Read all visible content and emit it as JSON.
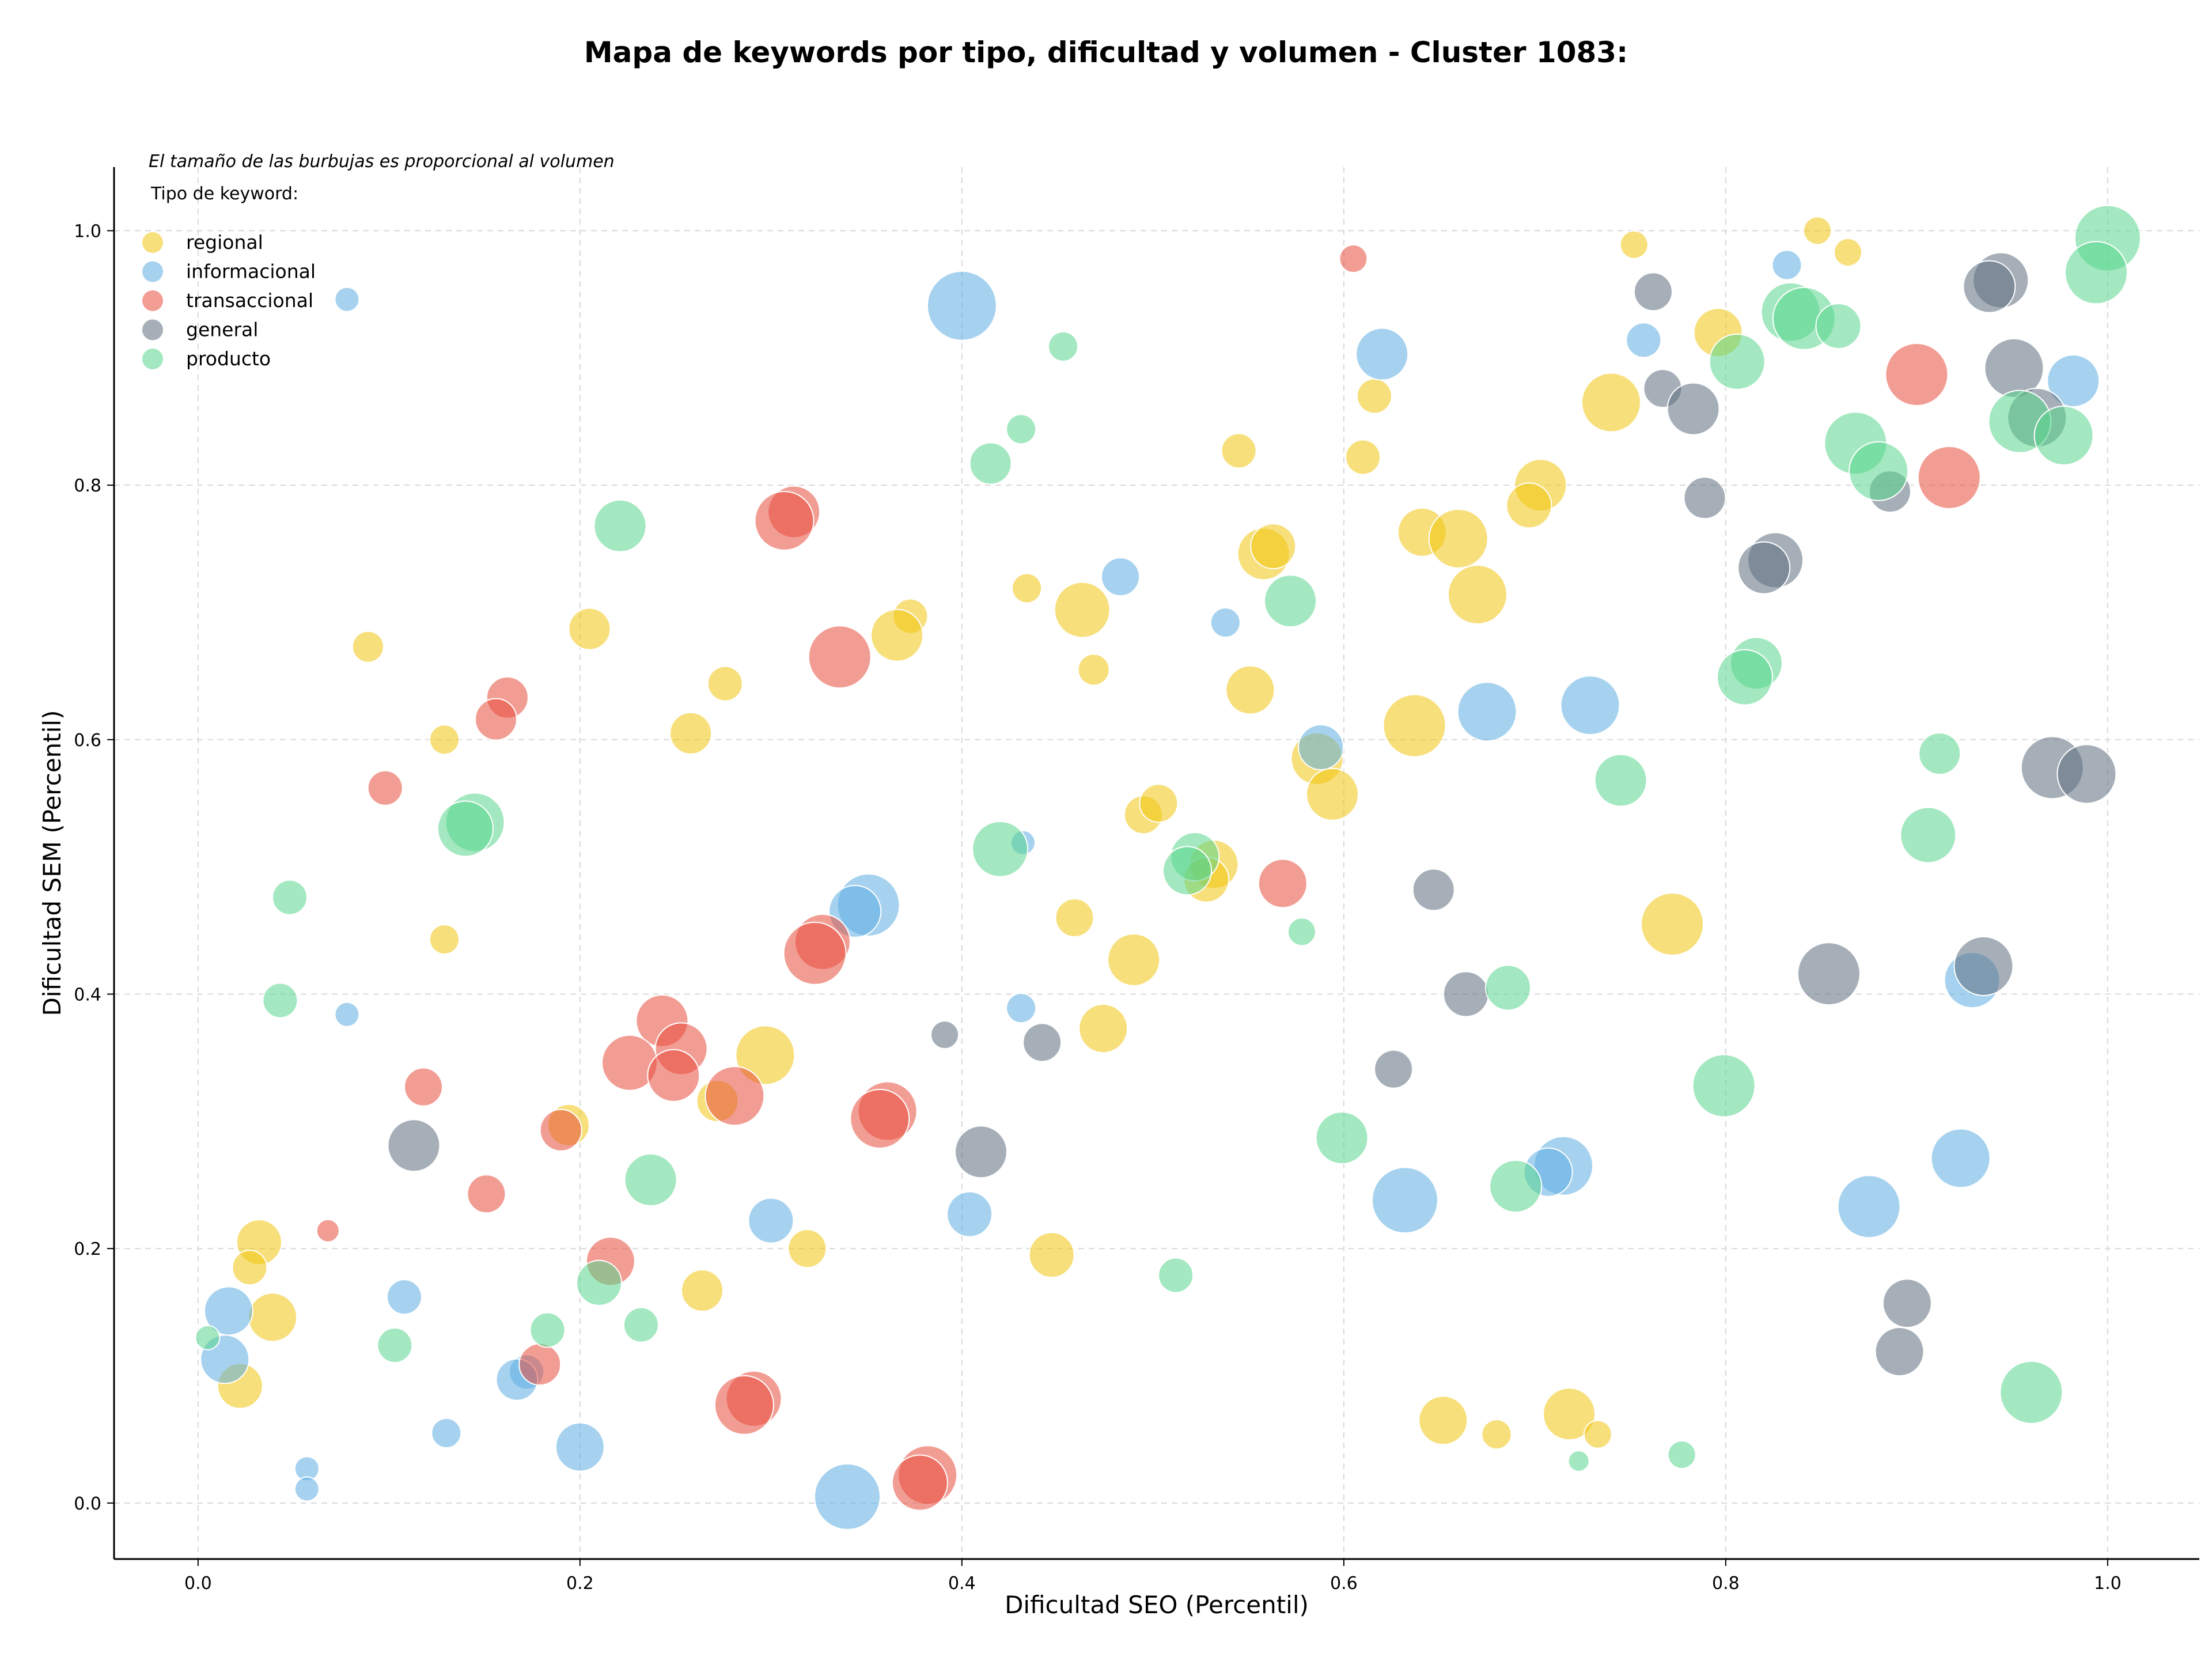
{
  "chart_data": {
    "type": "scatter",
    "title": "Mapa de keywords por tipo, dificultad y volumen - Cluster 1083:",
    "xlabel": "Dificultad SEO (Percentil)",
    "ylabel": "Dificultad SEM (Percentil)",
    "xlim": [
      -0.044,
      1.048
    ],
    "ylim": [
      -0.044,
      1.05
    ],
    "xticks": [
      0.0,
      0.2,
      0.4,
      0.6,
      0.8,
      1.0
    ],
    "yticks": [
      0.0,
      0.2,
      0.4,
      0.6,
      0.8,
      1.0
    ],
    "xtick_labels": [
      "0.0",
      "0.2",
      "0.4",
      "0.6",
      "0.8",
      "1.0"
    ],
    "ytick_labels": [
      "0.0",
      "0.2",
      "0.4",
      "0.6",
      "0.8",
      "1.0"
    ],
    "grid": true,
    "note": "El tamaño de las burbujas es proporcional al volumen",
    "legend_title": "Tipo de keyword:",
    "legend_position": "top-left",
    "series": [
      {
        "name": "regional",
        "color": "#F1C40F",
        "points": [
          [
            0.848,
            1.0,
            0.16
          ],
          [
            0.752,
            0.989,
            0.16
          ],
          [
            0.864,
            0.983,
            0.16
          ],
          [
            0.796,
            0.92,
            0.28
          ],
          [
            0.616,
            0.87,
            0.2
          ],
          [
            0.74,
            0.865,
            0.34
          ],
          [
            0.545,
            0.827,
            0.2
          ],
          [
            0.61,
            0.822,
            0.2
          ],
          [
            0.703,
            0.8,
            0.3
          ],
          [
            0.697,
            0.784,
            0.26
          ],
          [
            0.641,
            0.763,
            0.28
          ],
          [
            0.66,
            0.758,
            0.34
          ],
          [
            0.558,
            0.746,
            0.3
          ],
          [
            0.563,
            0.752,
            0.26
          ],
          [
            0.434,
            0.719,
            0.17
          ],
          [
            0.67,
            0.714,
            0.34
          ],
          [
            0.463,
            0.702,
            0.32
          ],
          [
            0.373,
            0.697,
            0.2
          ],
          [
            0.366,
            0.682,
            0.3
          ],
          [
            0.205,
            0.687,
            0.24
          ],
          [
            0.089,
            0.673,
            0.18
          ],
          [
            0.469,
            0.655,
            0.18
          ],
          [
            0.276,
            0.644,
            0.2
          ],
          [
            0.551,
            0.639,
            0.28
          ],
          [
            0.258,
            0.605,
            0.24
          ],
          [
            0.129,
            0.6,
            0.17
          ],
          [
            0.637,
            0.611,
            0.36
          ],
          [
            0.586,
            0.585,
            0.3
          ],
          [
            0.594,
            0.557,
            0.3
          ],
          [
            0.495,
            0.541,
            0.22
          ],
          [
            0.503,
            0.55,
            0.22
          ],
          [
            0.532,
            0.502,
            0.28
          ],
          [
            0.528,
            0.49,
            0.26
          ],
          [
            0.459,
            0.46,
            0.22
          ],
          [
            0.129,
            0.443,
            0.17
          ],
          [
            0.772,
            0.455,
            0.36
          ],
          [
            0.49,
            0.427,
            0.3
          ],
          [
            0.474,
            0.373,
            0.28
          ],
          [
            0.297,
            0.352,
            0.34
          ],
          [
            0.194,
            0.297,
            0.24
          ],
          [
            0.272,
            0.316,
            0.24
          ],
          [
            0.032,
            0.205,
            0.26
          ],
          [
            0.027,
            0.185,
            0.2
          ],
          [
            0.039,
            0.146,
            0.28
          ],
          [
            0.022,
            0.092,
            0.26
          ],
          [
            0.319,
            0.2,
            0.22
          ],
          [
            0.264,
            0.167,
            0.24
          ],
          [
            0.447,
            0.195,
            0.26
          ],
          [
            0.652,
            0.065,
            0.28
          ],
          [
            0.68,
            0.054,
            0.17
          ],
          [
            0.718,
            0.07,
            0.3
          ],
          [
            0.733,
            0.054,
            0.16
          ]
        ]
      },
      {
        "name": "informacional",
        "color": "#5DADE2",
        "points": [
          [
            0.078,
            0.946,
            0.14
          ],
          [
            0.4,
            0.941,
            0.4
          ],
          [
            0.832,
            0.973,
            0.17
          ],
          [
            0.757,
            0.914,
            0.2
          ],
          [
            0.62,
            0.903,
            0.3
          ],
          [
            0.982,
            0.882,
            0.3
          ],
          [
            0.483,
            0.728,
            0.22
          ],
          [
            0.538,
            0.692,
            0.17
          ],
          [
            0.588,
            0.594,
            0.26
          ],
          [
            0.675,
            0.622,
            0.34
          ],
          [
            0.729,
            0.627,
            0.34
          ],
          [
            0.351,
            0.47,
            0.36
          ],
          [
            0.344,
            0.465,
            0.3
          ],
          [
            0.432,
            0.519,
            0.14
          ],
          [
            0.078,
            0.384,
            0.14
          ],
          [
            0.431,
            0.389,
            0.17
          ],
          [
            0.929,
            0.411,
            0.32
          ],
          [
            0.3,
            0.222,
            0.26
          ],
          [
            0.404,
            0.227,
            0.26
          ],
          [
            0.632,
            0.238,
            0.38
          ],
          [
            0.715,
            0.265,
            0.34
          ],
          [
            0.707,
            0.26,
            0.28
          ],
          [
            0.875,
            0.233,
            0.36
          ],
          [
            0.923,
            0.271,
            0.34
          ],
          [
            0.016,
            0.151,
            0.28
          ],
          [
            0.014,
            0.113,
            0.28
          ],
          [
            0.108,
            0.162,
            0.2
          ],
          [
            0.172,
            0.103,
            0.2
          ],
          [
            0.167,
            0.097,
            0.24
          ],
          [
            0.13,
            0.055,
            0.17
          ],
          [
            0.2,
            0.044,
            0.28
          ],
          [
            0.057,
            0.027,
            0.14
          ],
          [
            0.057,
            0.011,
            0.14
          ],
          [
            0.34,
            0.005,
            0.38
          ]
        ]
      },
      {
        "name": "transaccional",
        "color": "#E74C3C",
        "points": [
          [
            0.605,
            0.978,
            0.16
          ],
          [
            0.9,
            0.887,
            0.36
          ],
          [
            0.917,
            0.806,
            0.36
          ],
          [
            0.312,
            0.779,
            0.3
          ],
          [
            0.307,
            0.772,
            0.34
          ],
          [
            0.336,
            0.665,
            0.36
          ],
          [
            0.162,
            0.633,
            0.24
          ],
          [
            0.156,
            0.616,
            0.24
          ],
          [
            0.098,
            0.562,
            0.2
          ],
          [
            0.568,
            0.487,
            0.28
          ],
          [
            0.327,
            0.441,
            0.32
          ],
          [
            0.323,
            0.432,
            0.36
          ],
          [
            0.243,
            0.379,
            0.3
          ],
          [
            0.253,
            0.357,
            0.3
          ],
          [
            0.226,
            0.346,
            0.32
          ],
          [
            0.249,
            0.336,
            0.3
          ],
          [
            0.281,
            0.32,
            0.34
          ],
          [
            0.118,
            0.327,
            0.22
          ],
          [
            0.19,
            0.293,
            0.24
          ],
          [
            0.361,
            0.308,
            0.34
          ],
          [
            0.357,
            0.302,
            0.34
          ],
          [
            0.151,
            0.243,
            0.22
          ],
          [
            0.068,
            0.214,
            0.13
          ],
          [
            0.216,
            0.19,
            0.28
          ],
          [
            0.179,
            0.109,
            0.24
          ],
          [
            0.291,
            0.082,
            0.32
          ],
          [
            0.286,
            0.077,
            0.34
          ],
          [
            0.382,
            0.022,
            0.34
          ],
          [
            0.378,
            0.016,
            0.32
          ]
        ]
      },
      {
        "name": "general",
        "color": "#5D6D7E",
        "points": [
          [
            0.762,
            0.952,
            0.22
          ],
          [
            0.944,
            0.961,
            0.32
          ],
          [
            0.938,
            0.956,
            0.3
          ],
          [
            0.767,
            0.876,
            0.22
          ],
          [
            0.783,
            0.86,
            0.3
          ],
          [
            0.951,
            0.892,
            0.34
          ],
          [
            0.963,
            0.853,
            0.34
          ],
          [
            0.789,
            0.79,
            0.24
          ],
          [
            0.886,
            0.795,
            0.24
          ],
          [
            0.826,
            0.741,
            0.32
          ],
          [
            0.82,
            0.735,
            0.3
          ],
          [
            0.971,
            0.578,
            0.36
          ],
          [
            0.989,
            0.573,
            0.34
          ],
          [
            0.647,
            0.482,
            0.24
          ],
          [
            0.664,
            0.4,
            0.26
          ],
          [
            0.854,
            0.416,
            0.36
          ],
          [
            0.935,
            0.422,
            0.34
          ],
          [
            0.391,
            0.368,
            0.16
          ],
          [
            0.442,
            0.362,
            0.22
          ],
          [
            0.626,
            0.341,
            0.22
          ],
          [
            0.113,
            0.281,
            0.3
          ],
          [
            0.41,
            0.276,
            0.3
          ],
          [
            0.895,
            0.157,
            0.28
          ],
          [
            0.891,
            0.119,
            0.28
          ]
        ]
      },
      {
        "name": "producto",
        "color": "#58D68D",
        "points": [
          [
            1.0,
            0.994,
            0.38
          ],
          [
            0.994,
            0.967,
            0.36
          ],
          [
            0.834,
            0.936,
            0.34
          ],
          [
            0.841,
            0.931,
            0.36
          ],
          [
            0.859,
            0.925,
            0.26
          ],
          [
            0.453,
            0.909,
            0.17
          ],
          [
            0.806,
            0.897,
            0.32
          ],
          [
            0.431,
            0.844,
            0.17
          ],
          [
            0.954,
            0.85,
            0.36
          ],
          [
            0.977,
            0.839,
            0.34
          ],
          [
            0.868,
            0.833,
            0.36
          ],
          [
            0.88,
            0.811,
            0.34
          ],
          [
            0.415,
            0.817,
            0.24
          ],
          [
            0.221,
            0.768,
            0.3
          ],
          [
            0.572,
            0.709,
            0.3
          ],
          [
            0.816,
            0.66,
            0.3
          ],
          [
            0.81,
            0.649,
            0.32
          ],
          [
            0.145,
            0.535,
            0.34
          ],
          [
            0.14,
            0.53,
            0.32
          ],
          [
            0.912,
            0.589,
            0.24
          ],
          [
            0.745,
            0.568,
            0.3
          ],
          [
            0.906,
            0.525,
            0.32
          ],
          [
            0.42,
            0.514,
            0.32
          ],
          [
            0.522,
            0.508,
            0.28
          ],
          [
            0.518,
            0.497,
            0.28
          ],
          [
            0.048,
            0.476,
            0.2
          ],
          [
            0.043,
            0.395,
            0.2
          ],
          [
            0.578,
            0.449,
            0.16
          ],
          [
            0.686,
            0.405,
            0.26
          ],
          [
            0.799,
            0.328,
            0.36
          ],
          [
            0.599,
            0.287,
            0.3
          ],
          [
            0.237,
            0.254,
            0.3
          ],
          [
            0.69,
            0.249,
            0.3
          ],
          [
            0.21,
            0.173,
            0.26
          ],
          [
            0.512,
            0.179,
            0.2
          ],
          [
            0.232,
            0.14,
            0.2
          ],
          [
            0.183,
            0.136,
            0.2
          ],
          [
            0.103,
            0.124,
            0.2
          ],
          [
            0.005,
            0.13,
            0.14
          ],
          [
            0.96,
            0.087,
            0.36
          ],
          [
            0.777,
            0.038,
            0.16
          ],
          [
            0.723,
            0.033,
            0.12
          ]
        ]
      }
    ]
  }
}
